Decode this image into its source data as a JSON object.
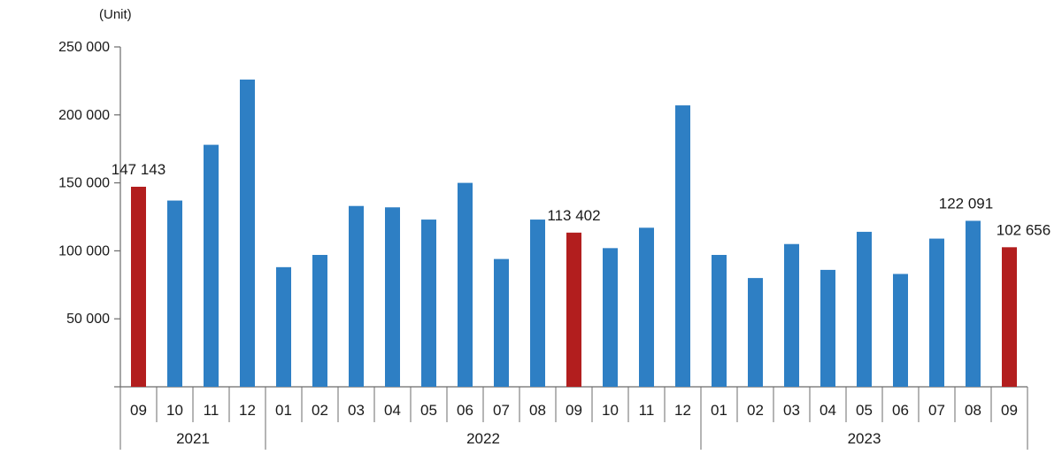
{
  "chart_data": {
    "type": "bar",
    "unit_label": "(Unit)",
    "y_ticks": [
      "250 000",
      "200 000",
      "150 000",
      "100 000",
      "50 000"
    ],
    "y_tick_values": [
      250000,
      200000,
      150000,
      100000,
      50000
    ],
    "ylim": [
      0,
      250000
    ],
    "grid": false,
    "categories": [
      "09",
      "10",
      "11",
      "12",
      "01",
      "02",
      "03",
      "04",
      "05",
      "06",
      "07",
      "08",
      "09",
      "10",
      "11",
      "12",
      "01",
      "02",
      "03",
      "04",
      "05",
      "06",
      "07",
      "08",
      "09"
    ],
    "years": [
      {
        "label": "2021",
        "start": 0,
        "end": 3
      },
      {
        "label": "2022",
        "start": 4,
        "end": 15
      },
      {
        "label": "2023",
        "start": 16,
        "end": 24
      }
    ],
    "values": [
      147143,
      137000,
      178000,
      226000,
      88000,
      97000,
      133000,
      132000,
      123000,
      150000,
      94000,
      123000,
      113402,
      102000,
      117000,
      207000,
      97000,
      80000,
      105000,
      86000,
      114000,
      83000,
      109000,
      122091,
      102656
    ],
    "highlight_indices": [
      0,
      12,
      24
    ],
    "data_labels": [
      {
        "index": 0,
        "text": "147 143"
      },
      {
        "index": 12,
        "text": "113 402"
      },
      {
        "index": 23,
        "text": "122 091"
      },
      {
        "index": 24,
        "text": "102 656"
      }
    ],
    "colors": {
      "normal": "#2e7fc4",
      "highlight": "#b21e1e",
      "axis": "#6b6b6b"
    }
  }
}
